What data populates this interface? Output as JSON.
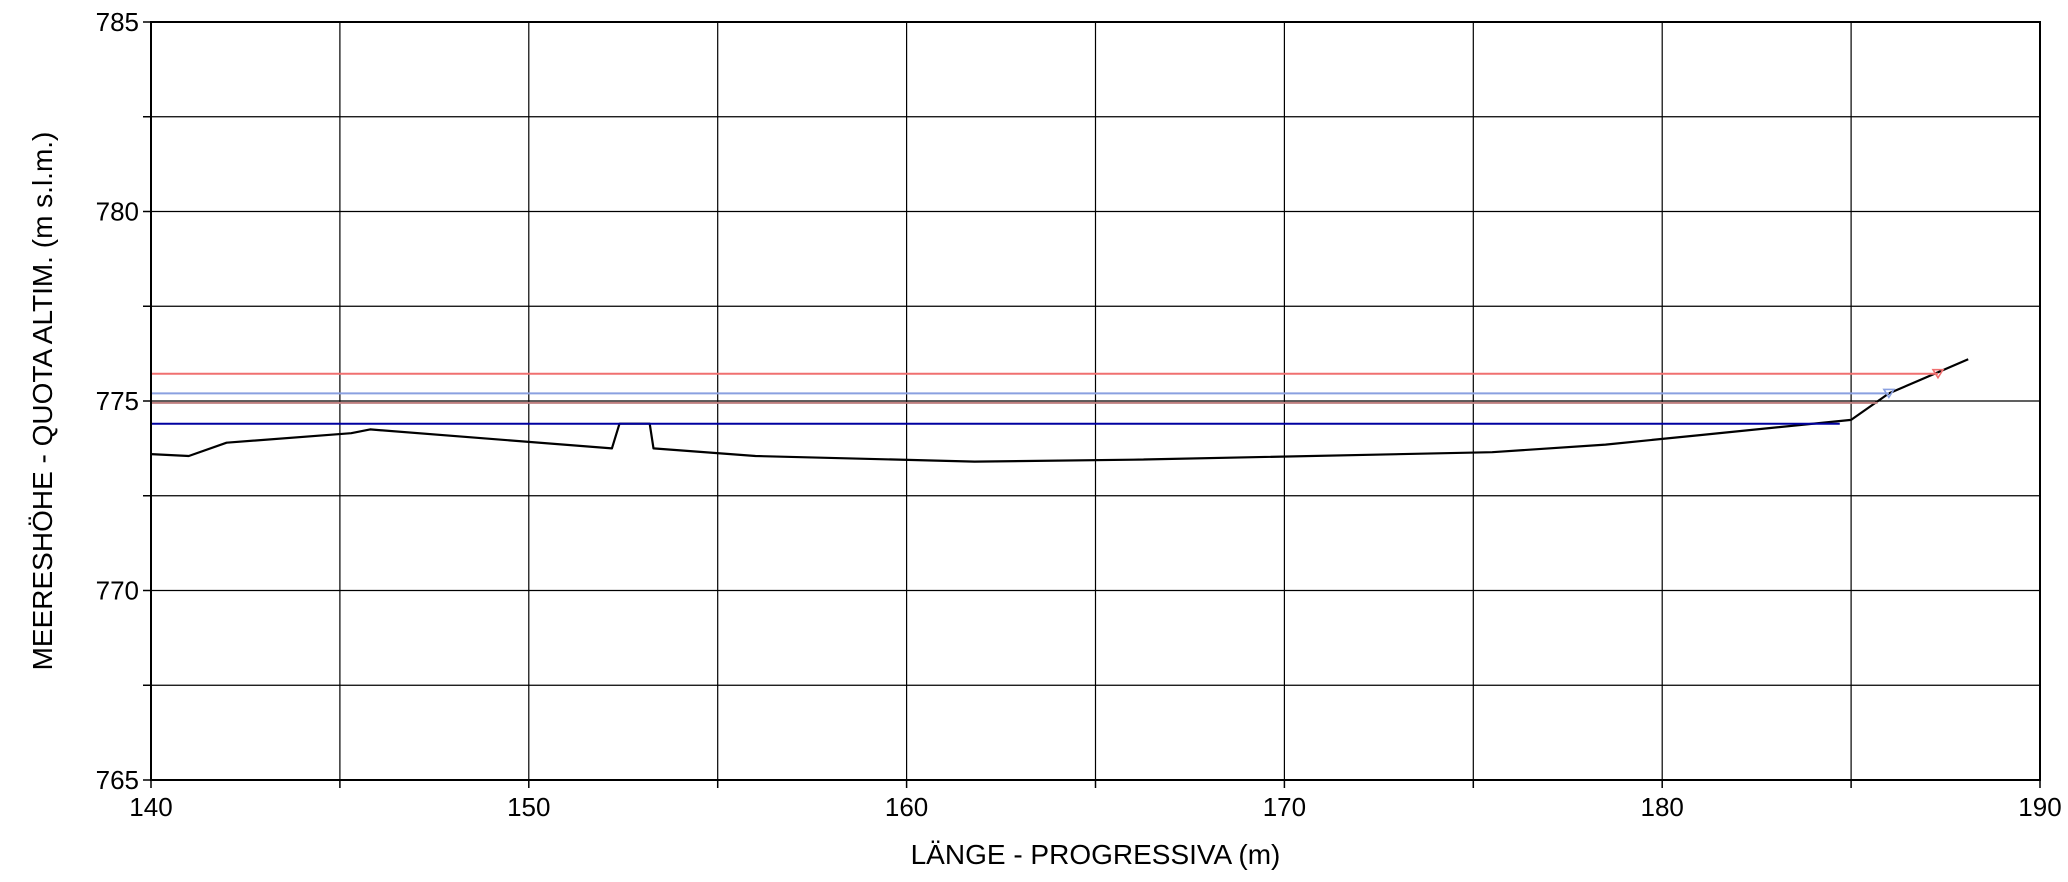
{
  "chart_data": {
    "type": "line",
    "title": "",
    "xlabel": "LÄNGE - PROGRESSIVA  (m)",
    "ylabel": "MEERESHÖHE - QUOTA ALTIM.  (m s.l.m.)",
    "xlim": [
      140,
      190
    ],
    "ylim": [
      765,
      785
    ],
    "x_major_ticks": [
      140,
      150,
      160,
      170,
      180,
      190
    ],
    "x_minor_step": 5,
    "y_major_ticks": [
      765,
      770,
      775,
      780,
      785
    ],
    "y_minor_step": 2.5,
    "grid": true,
    "legend": "none",
    "series": [
      {
        "kind": "profile",
        "color": "#000000",
        "points": [
          [
            140.0,
            773.6
          ],
          [
            141.0,
            773.55
          ],
          [
            142.0,
            773.9
          ],
          [
            145.3,
            774.15
          ],
          [
            145.8,
            774.25
          ],
          [
            152.2,
            773.75
          ],
          [
            152.4,
            774.4
          ],
          [
            153.2,
            774.4
          ],
          [
            153.3,
            773.75
          ],
          [
            156.0,
            773.55
          ],
          [
            161.8,
            773.4
          ],
          [
            166.0,
            773.45
          ],
          [
            175.5,
            773.65
          ],
          [
            178.5,
            773.85
          ],
          [
            181.0,
            774.1
          ],
          [
            185.0,
            774.5
          ],
          [
            186.0,
            775.2
          ],
          [
            188.1,
            776.1
          ]
        ]
      },
      {
        "kind": "water-level",
        "color": "#f07070",
        "y": 775.72,
        "x": [
          140.0,
          187.3
        ],
        "marker": "red-triangle-marker"
      },
      {
        "kind": "water-level",
        "color": "#8aa0e0",
        "y": 775.2,
        "x": [
          140.0,
          186.0
        ],
        "marker": "blue-triangle-marker"
      },
      {
        "kind": "water-level",
        "color": "#c08080",
        "y": 774.95,
        "x": [
          140.0,
          185.7
        ]
      },
      {
        "kind": "water-level",
        "color": "#0000a0",
        "y": 774.4,
        "x": [
          140.0,
          184.7
        ]
      }
    ]
  }
}
